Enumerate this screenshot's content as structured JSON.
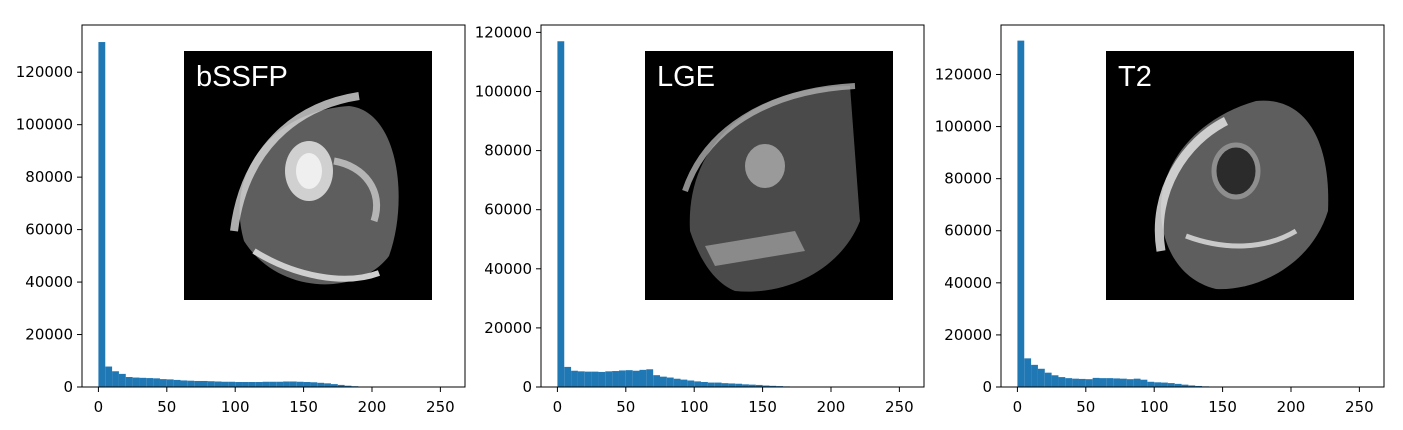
{
  "chart_data": [
    {
      "type": "bar",
      "inset_label": "bSSFP",
      "xlim": [
        -12,
        268
      ],
      "ylim": [
        0,
        138000
      ],
      "xticks": [
        0,
        50,
        100,
        150,
        200,
        250
      ],
      "yticks": [
        0,
        20000,
        40000,
        60000,
        80000,
        100000,
        120000
      ],
      "bin_width": 5,
      "bin_starts": [
        0,
        5,
        10,
        15,
        20,
        25,
        30,
        35,
        40,
        45,
        50,
        55,
        60,
        65,
        70,
        75,
        80,
        85,
        90,
        95,
        100,
        105,
        110,
        115,
        120,
        125,
        130,
        135,
        140,
        145,
        150,
        155,
        160,
        165,
        170,
        175,
        180,
        185,
        190,
        195,
        200,
        205,
        210,
        215,
        220,
        225,
        230,
        235,
        240,
        245,
        250
      ],
      "values": [
        131500,
        7800,
        6000,
        5000,
        3800,
        3600,
        3500,
        3400,
        3300,
        3000,
        2900,
        2700,
        2500,
        2400,
        2300,
        2300,
        2200,
        2100,
        2000,
        2000,
        1900,
        1900,
        1900,
        1900,
        2000,
        2000,
        2000,
        2100,
        2100,
        2000,
        1900,
        1800,
        1600,
        1400,
        1100,
        800,
        500,
        300,
        150,
        100,
        50,
        0,
        0,
        0,
        0,
        0,
        0,
        0,
        0,
        0,
        0
      ],
      "bar_color": "#1f77b4"
    },
    {
      "type": "bar",
      "inset_label": "LGE",
      "xlim": [
        -12,
        268
      ],
      "ylim": [
        0,
        122500
      ],
      "xticks": [
        0,
        50,
        100,
        150,
        200,
        250
      ],
      "yticks": [
        0,
        20000,
        40000,
        60000,
        80000,
        100000,
        120000
      ],
      "bin_width": 5,
      "bin_starts": [
        0,
        5,
        10,
        15,
        20,
        25,
        30,
        35,
        40,
        45,
        50,
        55,
        60,
        65,
        70,
        75,
        80,
        85,
        90,
        95,
        100,
        105,
        110,
        115,
        120,
        125,
        130,
        135,
        140,
        145,
        150,
        155,
        160,
        165,
        170,
        175,
        180,
        185,
        190,
        195,
        200,
        205,
        210,
        215,
        220,
        225,
        230,
        235,
        240,
        245,
        250
      ],
      "values": [
        117000,
        6800,
        5500,
        5300,
        5200,
        5200,
        5100,
        5300,
        5400,
        5600,
        5700,
        5500,
        5800,
        6000,
        4000,
        3500,
        3200,
        2800,
        2500,
        2200,
        1900,
        1700,
        1500,
        1500,
        1300,
        1200,
        1100,
        900,
        800,
        700,
        500,
        400,
        300,
        200,
        100,
        50,
        0,
        0,
        0,
        0,
        0,
        0,
        0,
        0,
        0,
        0,
        0,
        0,
        0,
        0,
        0
      ],
      "bar_color": "#1f77b4"
    },
    {
      "type": "bar",
      "inset_label": "T2",
      "xlim": [
        -12,
        268
      ],
      "ylim": [
        0,
        139000
      ],
      "xticks": [
        0,
        50,
        100,
        150,
        200,
        250
      ],
      "yticks": [
        0,
        20000,
        40000,
        60000,
        80000,
        100000,
        120000
      ],
      "bin_width": 5,
      "bin_starts": [
        0,
        5,
        10,
        15,
        20,
        25,
        30,
        35,
        40,
        45,
        50,
        55,
        60,
        65,
        70,
        75,
        80,
        85,
        90,
        95,
        100,
        105,
        110,
        115,
        120,
        125,
        130,
        135,
        140,
        145,
        150,
        155,
        160,
        165,
        170,
        175,
        180,
        185,
        190,
        195,
        200,
        205,
        210,
        215,
        220,
        225,
        230,
        235,
        240,
        245,
        250
      ],
      "values": [
        133000,
        11000,
        8500,
        7000,
        5500,
        4500,
        3800,
        3400,
        3200,
        3100,
        3000,
        3500,
        3400,
        3400,
        3300,
        3200,
        3000,
        3200,
        2800,
        2000,
        1800,
        1700,
        1500,
        1200,
        900,
        600,
        400,
        250,
        150,
        100,
        50,
        0,
        0,
        0,
        0,
        0,
        0,
        0,
        0,
        0,
        0,
        0,
        0,
        0,
        0,
        0,
        0,
        0,
        0,
        0,
        0
      ],
      "bar_color": "#1f77b4"
    }
  ]
}
